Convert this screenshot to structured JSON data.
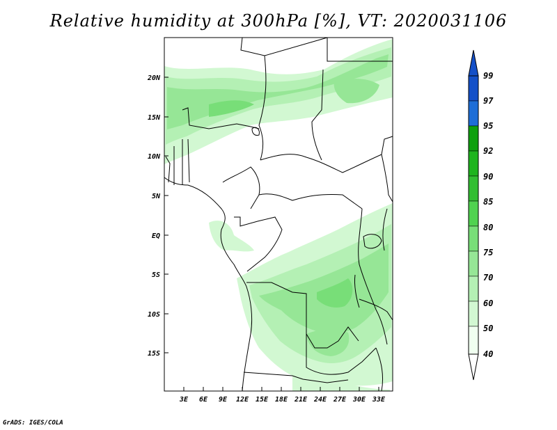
{
  "title": "Relative humidity at 300hPa [%], VT: 2020031106",
  "credit": "GrADS: IGES/COLA",
  "lat_ticks": [
    "20N",
    "15N",
    "10N",
    "5N",
    "EQ",
    "5S",
    "10S",
    "15S"
  ],
  "lon_ticks": [
    "3E",
    "6E",
    "9E",
    "12E",
    "15E",
    "18E",
    "21E",
    "24E",
    "27E",
    "30E",
    "33E"
  ],
  "colorbar": {
    "labels": [
      "40",
      "50",
      "60",
      "70",
      "75",
      "80",
      "85",
      "90",
      "92",
      "95",
      "97",
      "99"
    ],
    "colors": [
      "#f0fff0",
      "#d2f8d2",
      "#b4f0b4",
      "#96e696",
      "#78de78",
      "#50d250",
      "#32be32",
      "#1eb41e",
      "#0fa00f",
      "#3c96f0",
      "#1e6ed7",
      "#1450c8"
    ]
  }
}
